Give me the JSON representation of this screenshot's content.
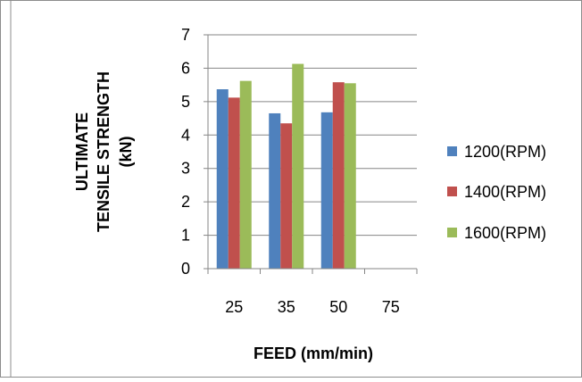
{
  "chart_data": {
    "type": "bar",
    "title": "",
    "xlabel": "FEED (mm/min)",
    "ylabel_lines": [
      "ULTIMATE",
      "TENSILE STRENGTH",
      "(kN)"
    ],
    "categories": [
      "25",
      "35",
      "50",
      "75"
    ],
    "ylim": [
      0,
      7
    ],
    "yticks": [
      0,
      1,
      2,
      3,
      4,
      5,
      6,
      7
    ],
    "grid": true,
    "legend_position": "right",
    "series": [
      {
        "name": "1200(RPM)",
        "color": "#4F81BD",
        "values": [
          5.37,
          4.65,
          4.68,
          null
        ]
      },
      {
        "name": "1400(RPM)",
        "color": "#C0504D",
        "values": [
          5.12,
          4.35,
          5.58,
          null
        ]
      },
      {
        "name": "1600(RPM)",
        "color": "#9BBB59",
        "values": [
          5.62,
          6.13,
          5.55,
          null
        ]
      }
    ]
  }
}
